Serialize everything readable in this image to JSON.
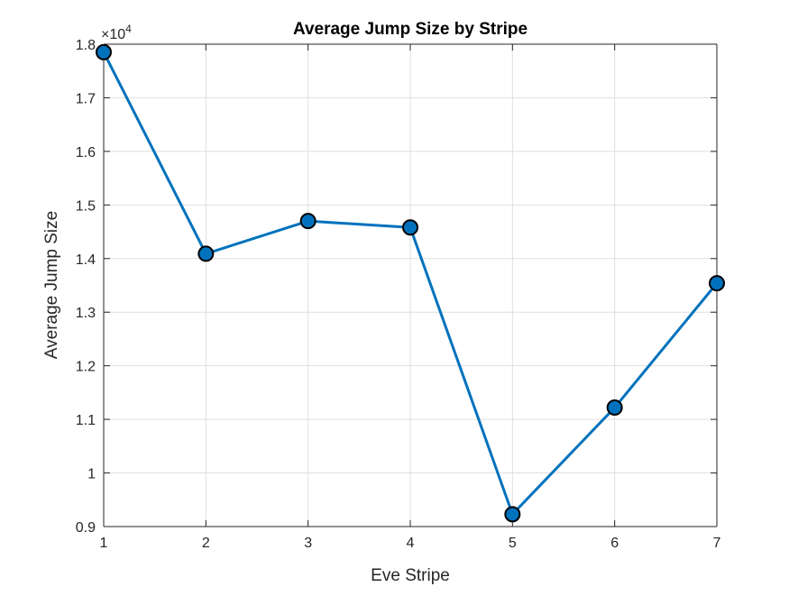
{
  "chart_data": {
    "type": "line",
    "title": "Average Jump Size by Stripe",
    "xlabel": "Eve Stripe",
    "ylabel": "Average Jump Size",
    "y_exponent_label": "×10",
    "y_exponent_power": "4",
    "x": [
      1,
      2,
      3,
      4,
      5,
      6,
      7
    ],
    "series": [
      {
        "values": [
          17850,
          14090,
          14700,
          14580,
          9230,
          11220,
          13540
        ]
      }
    ],
    "xlim": [
      1,
      7
    ],
    "ylim": [
      9000,
      18000
    ],
    "x_ticks": [
      1,
      2,
      3,
      4,
      5,
      6,
      7
    ],
    "x_tick_labels": [
      "1",
      "2",
      "3",
      "4",
      "5",
      "6",
      "7"
    ],
    "y_ticks": [
      9000,
      10000,
      11000,
      12000,
      13000,
      14000,
      15000,
      16000,
      17000,
      18000
    ],
    "y_tick_labels": [
      "0.9",
      "1",
      "1.1",
      "1.2",
      "1.3",
      "1.4",
      "1.5",
      "1.6",
      "1.7",
      "1.8"
    ],
    "grid": true,
    "line_color": "#0072BD",
    "marker_face_color": "#0072BD",
    "marker_edge_color": "#000000",
    "marker": "circle"
  }
}
